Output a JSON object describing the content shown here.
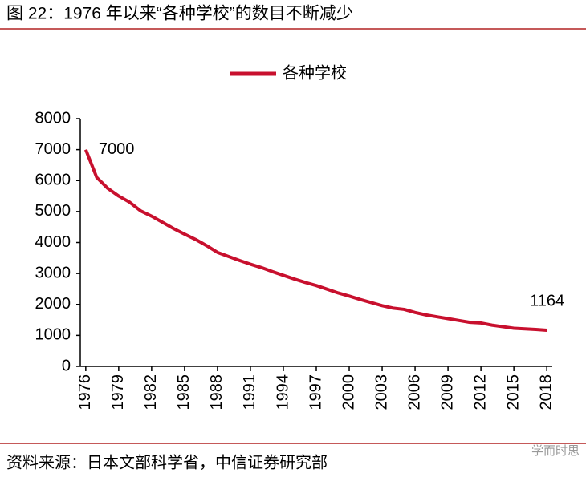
{
  "chart_data": {
    "type": "line",
    "title": "图 22：1976 年以来“各种学校”的数目不断减少",
    "source": "资料来源：日本文部科学省，中信证券研究部",
    "watermark": "学而时思",
    "x": [
      1976,
      1977,
      1978,
      1979,
      1980,
      1981,
      1982,
      1983,
      1984,
      1985,
      1986,
      1987,
      1988,
      1989,
      1990,
      1991,
      1992,
      1993,
      1994,
      1995,
      1996,
      1997,
      1998,
      1999,
      2000,
      2001,
      2002,
      2003,
      2004,
      2005,
      2006,
      2007,
      2008,
      2009,
      2010,
      2011,
      2012,
      2013,
      2014,
      2015,
      2016,
      2017,
      2018
    ],
    "series": [
      {
        "name": "各种学校",
        "color": "#c8102e",
        "values": [
          7000,
          6100,
          5750,
          5500,
          5300,
          5020,
          4850,
          4650,
          4450,
          4270,
          4100,
          3900,
          3680,
          3550,
          3420,
          3300,
          3190,
          3060,
          2940,
          2820,
          2710,
          2610,
          2490,
          2370,
          2270,
          2160,
          2060,
          1960,
          1880,
          1840,
          1740,
          1660,
          1600,
          1540,
          1480,
          1420,
          1400,
          1330,
          1280,
          1230,
          1210,
          1190,
          1164
        ]
      }
    ],
    "xlim": [
      1975.5,
      2018.5
    ],
    "xticks": [
      1976,
      1979,
      1982,
      1985,
      1988,
      1991,
      1994,
      1997,
      2000,
      2003,
      2006,
      2009,
      2012,
      2015,
      2018
    ],
    "ylim": [
      0,
      8000
    ],
    "yticks": [
      0,
      1000,
      2000,
      3000,
      4000,
      5000,
      6000,
      7000,
      8000
    ],
    "labeled_points": [
      0,
      42
    ],
    "grid": false
  }
}
